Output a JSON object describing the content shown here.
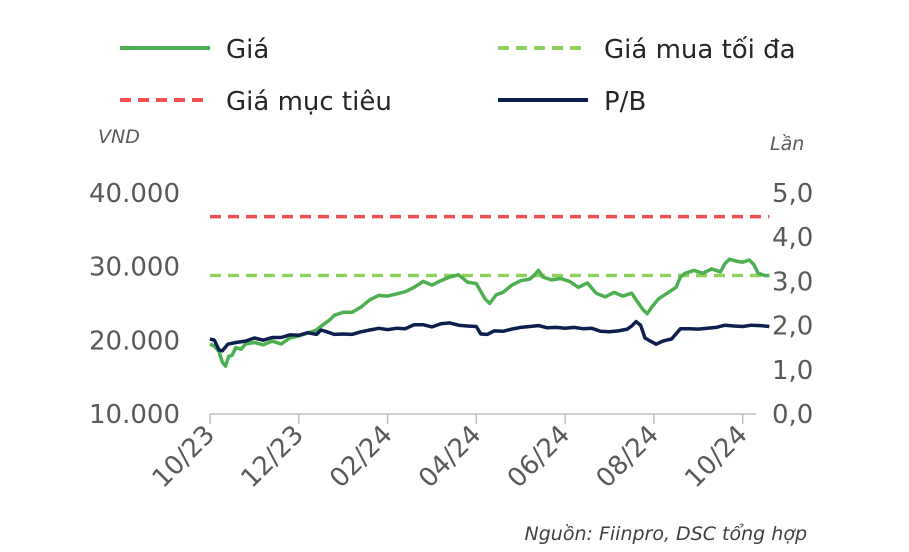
{
  "chart_data": {
    "type": "line",
    "legend": {
      "placement": "top",
      "entries": [
        {
          "name": "Giá",
          "color": "#4caf50",
          "style": "solid"
        },
        {
          "name": "Giá mua tối đa",
          "color": "#8fd15a",
          "style": "dashed"
        },
        {
          "name": "Giá mục tiêu",
          "color": "#f05050",
          "style": "dashed"
        },
        {
          "name": "P/B",
          "color": "#0d1f4f",
          "style": "solid"
        }
      ]
    },
    "y_left": {
      "label": "VND",
      "ylim": [
        10000,
        40000
      ],
      "ticks": [
        10000,
        20000,
        30000,
        40000
      ],
      "tick_labels": [
        "10.000",
        "20.000",
        "30.000",
        "40.000"
      ]
    },
    "y_right": {
      "label": "Lần",
      "ylim": [
        0,
        5
      ],
      "ticks": [
        0,
        1,
        2,
        3,
        4,
        5
      ],
      "tick_labels": [
        "0,0",
        "1,0",
        "2,0",
        "3,0",
        "4,0",
        "5,0"
      ]
    },
    "x": {
      "range_months": [
        0,
        12.3
      ],
      "ticks": [
        0,
        2,
        4,
        6,
        8,
        10,
        12
      ],
      "tick_labels": [
        "10/23",
        "12/23",
        "02/24",
        "04/24",
        "06/24",
        "08/24",
        "10/24"
      ]
    },
    "series": [
      {
        "name": "Giá",
        "axis": "left",
        "points": [
          [
            0,
            19500
          ],
          [
            0.1,
            19200
          ],
          [
            0.2,
            18500
          ],
          [
            0.28,
            17000
          ],
          [
            0.35,
            16500
          ],
          [
            0.42,
            17800
          ],
          [
            0.5,
            18000
          ],
          [
            0.58,
            19000
          ],
          [
            0.7,
            18800
          ],
          [
            0.8,
            19500
          ],
          [
            1.0,
            19700
          ],
          [
            1.2,
            19400
          ],
          [
            1.4,
            19900
          ],
          [
            1.6,
            19500
          ],
          [
            1.8,
            20300
          ],
          [
            2.0,
            20600
          ],
          [
            2.2,
            21000
          ],
          [
            2.4,
            21400
          ],
          [
            2.5,
            21900
          ],
          [
            2.7,
            22800
          ],
          [
            2.8,
            23400
          ],
          [
            3.0,
            23800
          ],
          [
            3.2,
            23800
          ],
          [
            3.4,
            24500
          ],
          [
            3.6,
            25500
          ],
          [
            3.8,
            26100
          ],
          [
            4.0,
            26000
          ],
          [
            4.2,
            26300
          ],
          [
            4.4,
            26600
          ],
          [
            4.6,
            27200
          ],
          [
            4.8,
            28000
          ],
          [
            5.0,
            27500
          ],
          [
            5.2,
            28100
          ],
          [
            5.4,
            28600
          ],
          [
            5.6,
            28900
          ],
          [
            5.8,
            27900
          ],
          [
            6.0,
            27700
          ],
          [
            6.2,
            25600
          ],
          [
            6.3,
            25000
          ],
          [
            6.45,
            26200
          ],
          [
            6.6,
            26500
          ],
          [
            6.8,
            27500
          ],
          [
            7.0,
            28100
          ],
          [
            7.2,
            28300
          ],
          [
            7.3,
            28800
          ],
          [
            7.4,
            29500
          ],
          [
            7.5,
            28600
          ],
          [
            7.7,
            28200
          ],
          [
            7.9,
            28400
          ],
          [
            8.1,
            28000
          ],
          [
            8.3,
            27200
          ],
          [
            8.5,
            27800
          ],
          [
            8.7,
            26400
          ],
          [
            8.9,
            25900
          ],
          [
            9.1,
            26500
          ],
          [
            9.3,
            26000
          ],
          [
            9.5,
            26400
          ],
          [
            9.6,
            25500
          ],
          [
            9.75,
            24200
          ],
          [
            9.85,
            23600
          ],
          [
            9.95,
            24500
          ],
          [
            10.1,
            25600
          ],
          [
            10.3,
            26400
          ],
          [
            10.5,
            27200
          ],
          [
            10.6,
            28600
          ],
          [
            10.7,
            29100
          ],
          [
            10.9,
            29500
          ],
          [
            11.1,
            29100
          ],
          [
            11.3,
            29700
          ],
          [
            11.5,
            29300
          ],
          [
            11.6,
            30400
          ],
          [
            11.7,
            31000
          ],
          [
            11.9,
            30700
          ],
          [
            12.0,
            30600
          ],
          [
            12.15,
            30900
          ],
          [
            12.25,
            30300
          ],
          [
            12.35,
            29100
          ],
          [
            12.5,
            28800
          ],
          [
            12.6,
            28800
          ]
        ]
      },
      {
        "name": "Giá mua tối đa",
        "axis": "left",
        "points": [
          [
            0,
            28800
          ],
          [
            12.6,
            28800
          ]
        ]
      },
      {
        "name": "Giá mục tiêu",
        "axis": "left",
        "points": [
          [
            0,
            36800
          ],
          [
            12.6,
            36800
          ]
        ]
      },
      {
        "name": "P/B",
        "axis": "right",
        "points": [
          [
            0,
            1.7
          ],
          [
            0.1,
            1.67
          ],
          [
            0.2,
            1.45
          ],
          [
            0.28,
            1.43
          ],
          [
            0.4,
            1.58
          ],
          [
            0.6,
            1.62
          ],
          [
            0.8,
            1.65
          ],
          [
            1.0,
            1.72
          ],
          [
            1.2,
            1.67
          ],
          [
            1.4,
            1.73
          ],
          [
            1.6,
            1.73
          ],
          [
            1.8,
            1.79
          ],
          [
            2.0,
            1.78
          ],
          [
            2.2,
            1.84
          ],
          [
            2.4,
            1.8
          ],
          [
            2.5,
            1.9
          ],
          [
            2.6,
            1.87
          ],
          [
            2.8,
            1.8
          ],
          [
            3.0,
            1.81
          ],
          [
            3.2,
            1.8
          ],
          [
            3.4,
            1.86
          ],
          [
            3.6,
            1.9
          ],
          [
            3.8,
            1.94
          ],
          [
            4.0,
            1.91
          ],
          [
            4.2,
            1.94
          ],
          [
            4.4,
            1.93
          ],
          [
            4.6,
            2.02
          ],
          [
            4.8,
            2.02
          ],
          [
            5.0,
            1.97
          ],
          [
            5.2,
            2.04
          ],
          [
            5.4,
            2.06
          ],
          [
            5.6,
            2.01
          ],
          [
            5.8,
            1.99
          ],
          [
            6.0,
            1.98
          ],
          [
            6.1,
            1.81
          ],
          [
            6.25,
            1.8
          ],
          [
            6.4,
            1.88
          ],
          [
            6.6,
            1.87
          ],
          [
            6.8,
            1.92
          ],
          [
            7.0,
            1.96
          ],
          [
            7.2,
            1.98
          ],
          [
            7.4,
            2.0
          ],
          [
            7.6,
            1.95
          ],
          [
            7.8,
            1.96
          ],
          [
            8.0,
            1.94
          ],
          [
            8.2,
            1.96
          ],
          [
            8.4,
            1.93
          ],
          [
            8.6,
            1.94
          ],
          [
            8.8,
            1.87
          ],
          [
            9.0,
            1.86
          ],
          [
            9.2,
            1.88
          ],
          [
            9.4,
            1.92
          ],
          [
            9.5,
            1.99
          ],
          [
            9.6,
            2.09
          ],
          [
            9.7,
            2.01
          ],
          [
            9.8,
            1.72
          ],
          [
            9.9,
            1.66
          ],
          [
            10.05,
            1.58
          ],
          [
            10.2,
            1.65
          ],
          [
            10.4,
            1.7
          ],
          [
            10.6,
            1.93
          ],
          [
            10.8,
            1.93
          ],
          [
            11.0,
            1.92
          ],
          [
            11.2,
            1.94
          ],
          [
            11.4,
            1.96
          ],
          [
            11.6,
            2.01
          ],
          [
            11.8,
            1.99
          ],
          [
            12.0,
            1.98
          ],
          [
            12.2,
            2.01
          ],
          [
            12.4,
            2.0
          ],
          [
            12.6,
            1.98
          ]
        ]
      }
    ],
    "source": "Nguồn: Fiinpro, DSC tổng hợp"
  }
}
